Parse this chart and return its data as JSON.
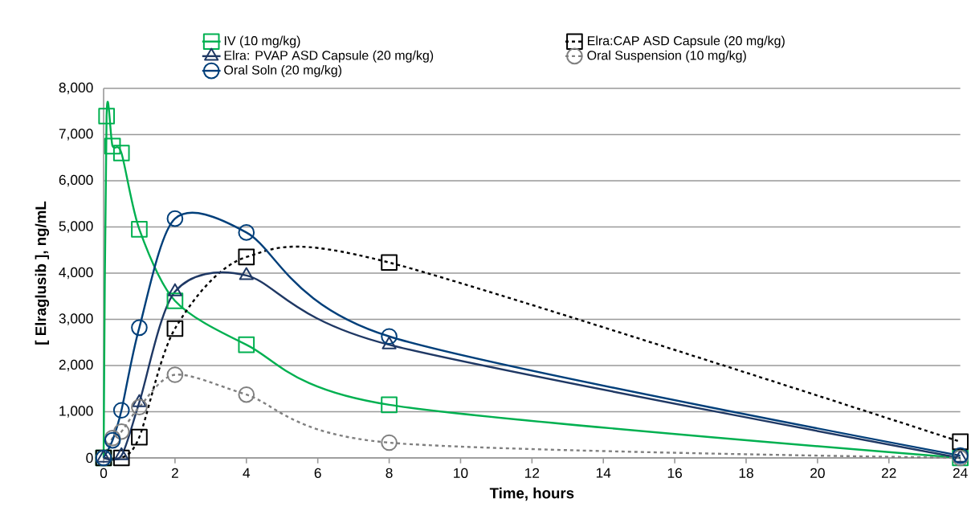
{
  "chart_data": {
    "type": "line",
    "xlabel": "Time, hours",
    "ylabel": "[ Elraglusib ], ng/mL",
    "xlim": [
      0,
      24
    ],
    "xticks": [
      0,
      2,
      4,
      6,
      8,
      10,
      12,
      14,
      16,
      18,
      20,
      22,
      24
    ],
    "ylim": [
      0,
      8000
    ],
    "yticks": [
      0,
      {
        "value": 1000,
        "label": "1,000"
      },
      {
        "value": 2000,
        "label": "2,000"
      },
      {
        "value": 3000,
        "label": "3,000"
      },
      {
        "value": 4000,
        "label": "4,000"
      },
      {
        "value": 5000,
        "label": "5,000"
      },
      {
        "value": 6000,
        "label": "6,000"
      },
      {
        "value": 7000,
        "label": "7,000"
      },
      {
        "value": 8000,
        "label": "8,000"
      }
    ],
    "grid": "y",
    "legend": "top",
    "series": [
      {
        "name": "IV (10 mg/kg)",
        "color": "#00b050",
        "marker": "square",
        "line_style": "solid",
        "x": [
          0,
          0.083,
          0.25,
          0.5,
          1,
          2,
          4,
          8,
          24
        ],
        "values": [
          0,
          7400,
          6750,
          6600,
          4950,
          3400,
          2450,
          1150,
          0
        ]
      },
      {
        "name": "Elra:CAP ASD Capsule (20 mg/kg)",
        "color": "#000000",
        "marker": "square",
        "line_style": "dashed",
        "x": [
          0,
          0.5,
          1,
          2,
          4,
          8,
          24
        ],
        "values": [
          0,
          0,
          450,
          2800,
          4350,
          4230,
          350
        ]
      },
      {
        "name": "Elra: PVAP ASD Capsule (20 mg/kg)",
        "color": "#1f3864",
        "marker": "triangle",
        "line_style": "solid",
        "x": [
          0,
          0.5,
          1,
          2,
          4,
          8,
          24
        ],
        "values": [
          0,
          50,
          1200,
          3600,
          3950,
          2450,
          0
        ]
      },
      {
        "name": "Oral Suspension (10 mg/kg)",
        "color": "#808080",
        "marker": "circle",
        "line_style": "dashed",
        "x": [
          0,
          0.25,
          0.5,
          1,
          2,
          4,
          8,
          24
        ],
        "values": [
          0,
          430,
          570,
          1100,
          1800,
          1370,
          330,
          0
        ]
      },
      {
        "name": "Oral Soln (20 mg/kg)",
        "color": "#003f7a",
        "marker": "circle",
        "line_style": "solid",
        "x": [
          0,
          0.25,
          0.5,
          1,
          2,
          4,
          8,
          24
        ],
        "values": [
          0,
          380,
          1030,
          2820,
          5180,
          4880,
          2630,
          50
        ]
      }
    ]
  }
}
